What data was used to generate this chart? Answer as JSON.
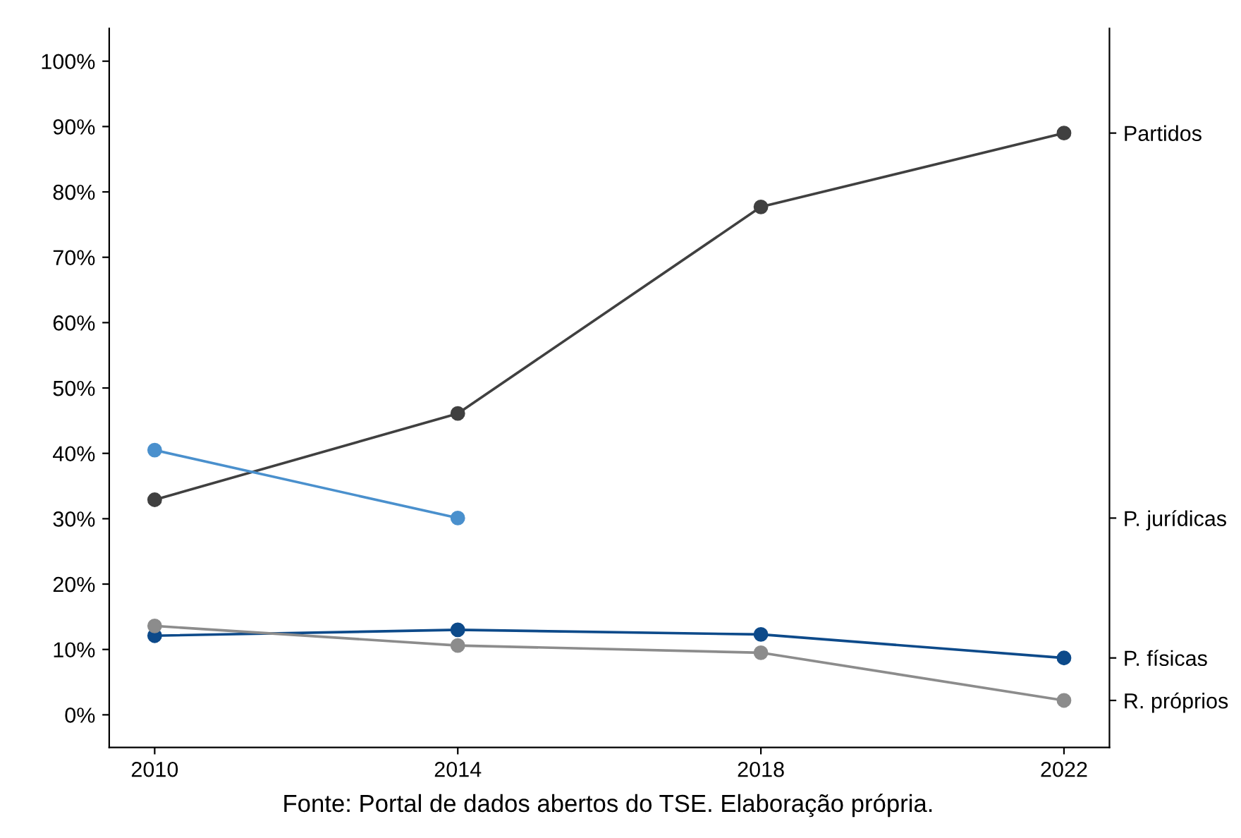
{
  "chart_data": {
    "type": "line",
    "x": [
      2010,
      2014,
      2018,
      2022
    ],
    "series": [
      {
        "name": "Partidos",
        "color": "#404040",
        "values": [
          32.9,
          46.1,
          77.7,
          89.0
        ]
      },
      {
        "name": "P. jurídicas",
        "color": "#4a90cd",
        "values": [
          40.5,
          30.1,
          null,
          null
        ]
      },
      {
        "name": "P. físicas",
        "color": "#0d4a8a",
        "values": [
          12.1,
          13.0,
          12.3,
          8.7
        ]
      },
      {
        "name": "R. próprios",
        "color": "#8c8c8c",
        "values": [
          13.6,
          10.6,
          9.5,
          2.2
        ]
      }
    ],
    "xlim": [
      2009.4,
      2022.6
    ],
    "xticks": [
      2010,
      2014,
      2018,
      2022
    ],
    "ylim": [
      -5,
      105
    ],
    "yticks": [
      {
        "value": 0,
        "label": "0%"
      },
      {
        "value": 10,
        "label": "10%"
      },
      {
        "value": 20,
        "label": "20%"
      },
      {
        "value": 30,
        "label": "30%"
      },
      {
        "value": 40,
        "label": "40%"
      },
      {
        "value": 50,
        "label": "50%"
      },
      {
        "value": 60,
        "label": "60%"
      },
      {
        "value": 70,
        "label": "70%"
      },
      {
        "value": 80,
        "label": "80%"
      },
      {
        "value": 90,
        "label": "90%"
      },
      {
        "value": 100,
        "label": "100%"
      }
    ],
    "marker": "circle",
    "line_style": "solid",
    "grid": false,
    "legend": false,
    "annotations": [
      "Fonte: Portal de dados abertos do TSE. Elaboração própria."
    ]
  }
}
